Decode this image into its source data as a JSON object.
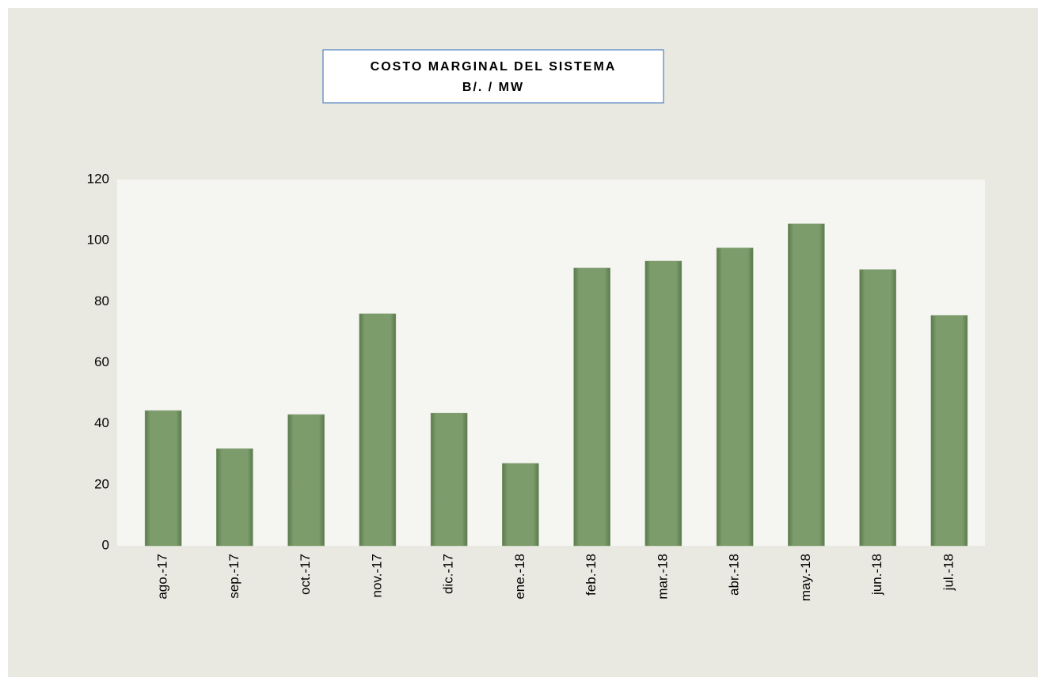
{
  "chart_data": {
    "type": "bar",
    "title": [
      "COSTO MARGINAL DEL SISTEMA",
      "B/.  / MW"
    ],
    "categories": [
      "ago.-17",
      "sep.-17",
      "oct.-17",
      "nov.-17",
      "dic.-17",
      "ene.-18",
      "feb.-18",
      "mar.-18",
      "abr.-18",
      "may.-18",
      "jun.-18",
      "jul.-18"
    ],
    "values": [
      44.3,
      31.8,
      43,
      76,
      43.5,
      27,
      91,
      93.3,
      97.6,
      105.5,
      90.5,
      75.5
    ],
    "color": "#7d9c6c",
    "ylim": [
      0,
      120
    ],
    "yticks": [
      0,
      20,
      40,
      60,
      80,
      100,
      120
    ],
    "grid": false
  }
}
